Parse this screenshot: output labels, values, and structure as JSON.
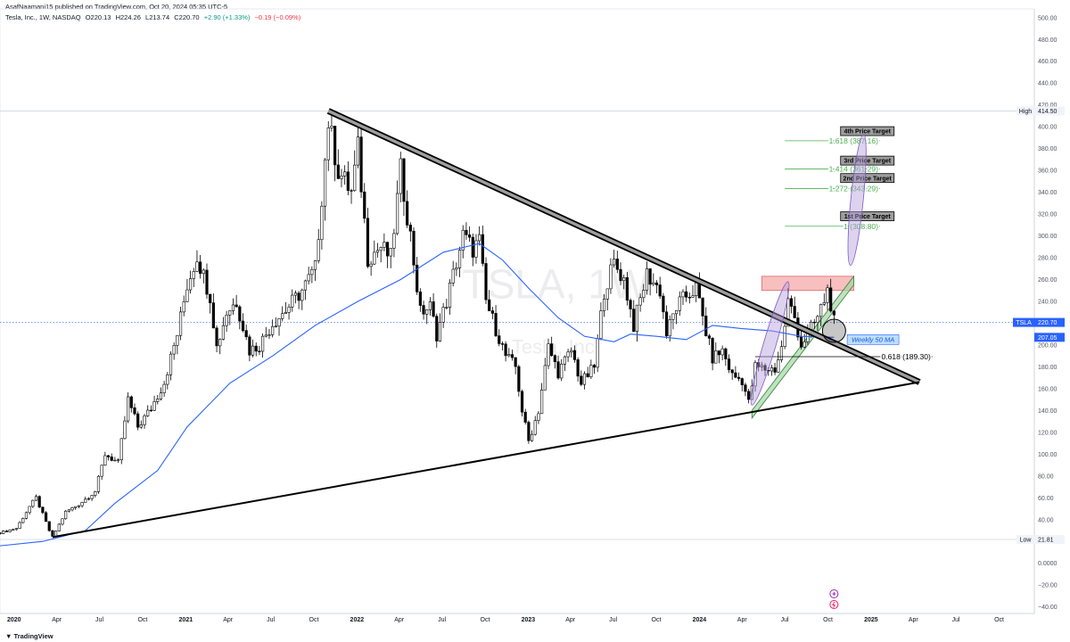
{
  "header": {
    "publisher_line": "AsafNaamani15 published on TradingView.com, Oct 20, 2024 05:35 UTC-5",
    "symbol_desc": "Tesla, Inc., 1W, NASDAQ",
    "open": "O220.13",
    "high": "H224.26",
    "low": "L213.74",
    "close": "C220.70",
    "change": "+2.90 (+1.33%)",
    "extra": "−0.19 (−0.09%)"
  },
  "footer": {
    "brand": "TradingView"
  },
  "colors": {
    "background": "#ffffff",
    "up_candle": "#ffffff",
    "down_candle": "#000000",
    "ma_line": "#2962ff",
    "target_lines": "#4caf50",
    "resistance_zone": "#f28b8b",
    "support_channel": "#a5d6a7",
    "projection_ellipse": "#b39ddb",
    "price_label_bg": "#2962ff"
  },
  "icons": [
    "plus-circle-icon",
    "lightning-circle-icon",
    "tradingview-logo-icon"
  ],
  "chart_data": {
    "type": "candlestick",
    "symbol": "TSLA",
    "timeframe": "1W",
    "watermark": {
      "symbol": "TSLA, 1W",
      "name": "Tesla, Inc."
    },
    "ylim": [
      -46,
      508
    ],
    "y_ticks": [
      -40,
      -20,
      0,
      20,
      40,
      60,
      80,
      100,
      120,
      140,
      160,
      180,
      200,
      220,
      240,
      260,
      280,
      300,
      320,
      340,
      360,
      380,
      400,
      420,
      440,
      460,
      480,
      500
    ],
    "y_tick_labels": [
      "−40.00",
      "−20.00",
      "0.0000",
      "20.00",
      "40.00",
      "60.00",
      "80.00",
      "100.00",
      "120.00",
      "140.00",
      "160.00",
      "180.00",
      "200.00",
      "220.00",
      "240.00",
      "260.00",
      "280.00",
      "300.00",
      "320.00",
      "340.00",
      "360.00",
      "380.00",
      "400.00",
      "420.00",
      "440.00",
      "460.00",
      "480.00",
      "500.00"
    ],
    "x_range": [
      "2019-12-02",
      "2025-12-15"
    ],
    "x_ticks": [
      {
        "date": "2020-01-01",
        "label": "2020",
        "bold": true
      },
      {
        "date": "2020-04-01",
        "label": "Apr",
        "bold": false
      },
      {
        "date": "2020-07-01",
        "label": "Jul",
        "bold": false
      },
      {
        "date": "2020-10-01",
        "label": "Oct",
        "bold": false
      },
      {
        "date": "2021-01-01",
        "label": "2021",
        "bold": true
      },
      {
        "date": "2021-04-01",
        "label": "Apr",
        "bold": false
      },
      {
        "date": "2021-07-01",
        "label": "Jul",
        "bold": false
      },
      {
        "date": "2021-10-01",
        "label": "Oct",
        "bold": false
      },
      {
        "date": "2022-01-01",
        "label": "2022",
        "bold": true
      },
      {
        "date": "2022-04-01",
        "label": "Apr",
        "bold": false
      },
      {
        "date": "2022-07-01",
        "label": "Jul",
        "bold": false
      },
      {
        "date": "2022-10-01",
        "label": "Oct",
        "bold": false
      },
      {
        "date": "2023-01-01",
        "label": "2023",
        "bold": true
      },
      {
        "date": "2023-04-01",
        "label": "Apr",
        "bold": false
      },
      {
        "date": "2023-07-01",
        "label": "Jul",
        "bold": false
      },
      {
        "date": "2023-10-01",
        "label": "Oct",
        "bold": false
      },
      {
        "date": "2024-01-01",
        "label": "2024",
        "bold": true
      },
      {
        "date": "2024-04-01",
        "label": "Apr",
        "bold": false
      },
      {
        "date": "2024-07-01",
        "label": "Jul",
        "bold": false
      },
      {
        "date": "2024-10-01",
        "label": "Oct",
        "bold": false
      },
      {
        "date": "2025-01-01",
        "label": "2025",
        "bold": true
      },
      {
        "date": "2025-04-01",
        "label": "Apr",
        "bold": false
      },
      {
        "date": "2025-07-01",
        "label": "Jul",
        "bold": false
      },
      {
        "date": "2025-10-01",
        "label": "Oct",
        "bold": false
      }
    ],
    "price_path": [
      [
        "2019-12-02",
        28
      ],
      [
        "2020-01-06",
        32
      ],
      [
        "2020-02-03",
        52
      ],
      [
        "2020-02-17",
        60
      ],
      [
        "2020-03-16",
        30
      ],
      [
        "2020-03-23",
        24
      ],
      [
        "2020-04-20",
        47
      ],
      [
        "2020-05-18",
        54
      ],
      [
        "2020-06-22",
        66
      ],
      [
        "2020-07-13",
        100
      ],
      [
        "2020-08-10",
        92
      ],
      [
        "2020-08-31",
        150
      ],
      [
        "2020-09-21",
        125
      ],
      [
        "2020-10-19",
        142
      ],
      [
        "2020-11-16",
        166
      ],
      [
        "2020-12-14",
        210
      ],
      [
        "2021-01-04",
        255
      ],
      [
        "2021-01-25",
        282
      ],
      [
        "2021-02-22",
        245
      ],
      [
        "2021-03-08",
        198
      ],
      [
        "2021-03-29",
        230
      ],
      [
        "2021-04-19",
        240
      ],
      [
        "2021-05-17",
        195
      ],
      [
        "2021-06-07",
        200
      ],
      [
        "2021-07-05",
        220
      ],
      [
        "2021-08-02",
        232
      ],
      [
        "2021-09-06",
        250
      ],
      [
        "2021-10-04",
        270
      ],
      [
        "2021-10-25",
        370
      ],
      [
        "2021-11-01",
        405
      ],
      [
        "2021-11-22",
        360
      ],
      [
        "2021-12-20",
        340
      ],
      [
        "2022-01-03",
        380
      ],
      [
        "2022-01-24",
        280
      ],
      [
        "2022-02-21",
        290
      ],
      [
        "2022-03-14",
        280
      ],
      [
        "2022-04-04",
        360
      ],
      [
        "2022-04-25",
        300
      ],
      [
        "2022-05-16",
        230
      ],
      [
        "2022-06-06",
        235
      ],
      [
        "2022-06-20",
        210
      ],
      [
        "2022-07-11",
        240
      ],
      [
        "2022-08-15",
        300
      ],
      [
        "2022-09-05",
        288
      ],
      [
        "2022-09-19",
        295
      ],
      [
        "2022-10-03",
        240
      ],
      [
        "2022-10-24",
        215
      ],
      [
        "2022-11-14",
        190
      ],
      [
        "2022-12-05",
        180
      ],
      [
        "2022-12-19",
        140
      ],
      [
        "2023-01-02",
        112
      ],
      [
        "2023-01-23",
        140
      ],
      [
        "2023-02-13",
        198
      ],
      [
        "2023-03-06",
        175
      ],
      [
        "2023-04-03",
        195
      ],
      [
        "2023-04-24",
        165
      ],
      [
        "2023-05-22",
        180
      ],
      [
        "2023-06-12",
        250
      ],
      [
        "2023-07-03",
        275
      ],
      [
        "2023-07-24",
        260
      ],
      [
        "2023-08-14",
        218
      ],
      [
        "2023-09-11",
        265
      ],
      [
        "2023-10-09",
        250
      ],
      [
        "2023-10-23",
        210
      ],
      [
        "2023-11-13",
        235
      ],
      [
        "2023-12-04",
        245
      ],
      [
        "2023-12-25",
        252
      ],
      [
        "2024-01-15",
        212
      ],
      [
        "2024-01-29",
        188
      ],
      [
        "2024-02-19",
        195
      ],
      [
        "2024-03-11",
        172
      ],
      [
        "2024-04-01",
        168
      ],
      [
        "2024-04-15",
        147
      ],
      [
        "2024-04-29",
        180
      ],
      [
        "2024-05-20",
        178
      ],
      [
        "2024-06-10",
        178
      ],
      [
        "2024-06-24",
        197
      ],
      [
        "2024-07-08",
        240
      ],
      [
        "2024-07-22",
        225
      ],
      [
        "2024-08-05",
        200
      ],
      [
        "2024-08-26",
        215
      ],
      [
        "2024-09-09",
        225
      ],
      [
        "2024-09-30",
        250
      ],
      [
        "2024-10-07",
        238
      ],
      [
        "2024-10-14",
        220.7
      ]
    ],
    "ma50_path": [
      [
        "2019-12-02",
        16
      ],
      [
        "2020-03-02",
        20
      ],
      [
        "2020-06-01",
        30
      ],
      [
        "2020-08-03",
        55
      ],
      [
        "2020-11-02",
        85
      ],
      [
        "2021-01-04",
        125
      ],
      [
        "2021-04-05",
        165
      ],
      [
        "2021-07-05",
        190
      ],
      [
        "2021-10-04",
        218
      ],
      [
        "2022-01-03",
        240
      ],
      [
        "2022-04-04",
        260
      ],
      [
        "2022-07-04",
        285
      ],
      [
        "2022-09-19",
        293
      ],
      [
        "2022-11-07",
        278
      ],
      [
        "2023-01-02",
        252
      ],
      [
        "2023-03-06",
        225
      ],
      [
        "2023-05-01",
        208
      ],
      [
        "2023-07-03",
        203
      ],
      [
        "2023-08-07",
        210
      ],
      [
        "2023-10-02",
        208
      ],
      [
        "2023-12-04",
        205
      ],
      [
        "2024-01-29",
        218
      ],
      [
        "2024-04-01",
        215
      ],
      [
        "2024-06-03",
        213
      ],
      [
        "2024-08-05",
        208
      ],
      [
        "2024-10-14",
        207.05
      ]
    ],
    "trendlines": [
      {
        "name": "descending-resistance",
        "from": [
          "2021-11-01",
          414.5
        ],
        "to": [
          "2025-04-14",
          166
        ],
        "style": "double"
      },
      {
        "name": "ascending-support",
        "from": [
          "2020-03-23",
          24
        ],
        "to": [
          "2025-04-14",
          166
        ],
        "style": "single"
      }
    ],
    "zones": [
      {
        "name": "resistance-zone",
        "x": [
          "2024-05-13",
          "2024-11-25"
        ],
        "y": [
          250,
          263
        ]
      }
    ],
    "channels": [
      {
        "name": "support-channel",
        "points": [
          [
            "2024-04-22",
            140
          ],
          [
            "2024-11-25",
            263
          ],
          [
            "2024-11-25",
            255
          ],
          [
            "2024-04-22",
            133
          ]
        ]
      }
    ],
    "horizontal_lines": [
      {
        "name": "fib-0618",
        "price": 189.3,
        "x_from": "2024-04-29",
        "x_to": "2025-05-12",
        "label": "0.618 (189.30)",
        "color": "#000000"
      },
      {
        "name": "fib-1",
        "price": 308.8,
        "x_from": "2024-07-01",
        "x_to": "2025-01-20",
        "label": "1 (308.80)",
        "color": "#4caf50"
      },
      {
        "name": "fib-1272",
        "price": 343.29,
        "x_from": "2024-07-01",
        "x_to": "2025-01-20",
        "label": "1.272 (343.29)",
        "color": "#4caf50"
      },
      {
        "name": "fib-1414",
        "price": 361.29,
        "x_from": "2024-07-01",
        "x_to": "2025-01-20",
        "label": "1.414 (361.29)",
        "color": "#4caf50"
      },
      {
        "name": "fib-1618",
        "price": 387.16,
        "x_from": "2024-07-01",
        "x_to": "2025-01-20",
        "label": "1.618 (387.16)",
        "color": "#4caf50"
      }
    ],
    "target_labels": [
      {
        "text": "1st Price Target",
        "date": "2024-10-28",
        "price": 318
      },
      {
        "text": "2nd Price Target",
        "date": "2024-10-28",
        "price": 353
      },
      {
        "text": "3rd Price Target",
        "date": "2024-10-28",
        "price": 369
      },
      {
        "text": "4th Price Target",
        "date": "2024-10-28",
        "price": 396
      }
    ],
    "ellipses": [
      {
        "name": "projection-ellipse-upper",
        "from": [
          "2024-11-18",
          273
        ],
        "to": [
          "2024-12-16",
          393
        ]
      },
      {
        "name": "projection-ellipse-lower",
        "from": [
          "2024-04-22",
          145
        ],
        "to": [
          "2024-07-08",
          258
        ]
      }
    ],
    "circle_marker": {
      "date": "2024-10-14",
      "price": 213
    },
    "ma_label": {
      "text": "Weekly 50 MA",
      "date": "2024-11-11",
      "price": 205
    },
    "axis_badges": [
      {
        "text": "High",
        "value": "414.50",
        "price": 414.5,
        "style": "plain"
      },
      {
        "text": "TSLA",
        "value": "220.70",
        "price": 220.7,
        "style": "blue"
      },
      {
        "text": "",
        "value": "207.05",
        "price": 207.05,
        "style": "blue"
      },
      {
        "text": "Low",
        "value": "21.81",
        "price": 21.81,
        "style": "plain"
      }
    ],
    "high_price": 414.5,
    "low_price": 21.81,
    "last_price": 220.7
  }
}
